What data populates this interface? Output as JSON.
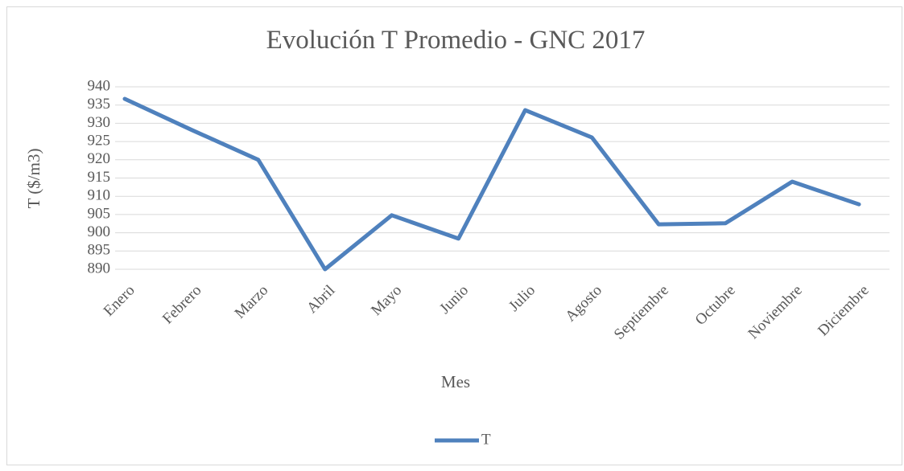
{
  "chart_data": {
    "type": "line",
    "title": "Evolución T Promedio - GNC 2017",
    "x_label": "Mes",
    "y_label": "T ($/m3)",
    "categories": [
      "Enero",
      "Febrero",
      "Marzo",
      "Abril",
      "Mayo",
      "Junio",
      "Julio",
      "Agosto",
      "Septiembre",
      "Octubre",
      "Noviembre",
      "Diciembre"
    ],
    "series": [
      {
        "name": "T",
        "color": "#4f81bd",
        "values": [
          936.7,
          928.2,
          920,
          890,
          904.8,
          898.4,
          933.6,
          926.1,
          902.3,
          902.6,
          914,
          907.8
        ]
      }
    ],
    "ylim": [
      890,
      940
    ],
    "yticks": [
      890,
      895,
      900,
      905,
      910,
      915,
      920,
      925,
      930,
      935,
      940
    ],
    "grid": true,
    "legend": "bottom"
  }
}
